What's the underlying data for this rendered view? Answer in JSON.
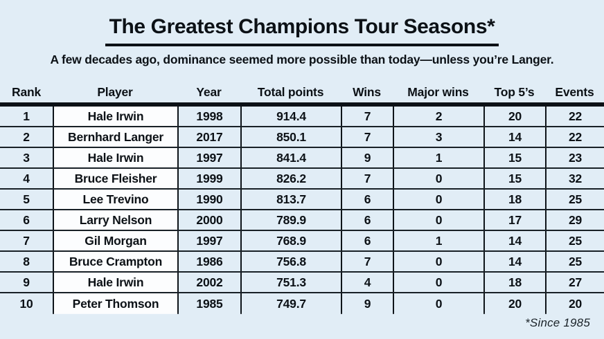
{
  "header": {
    "title": "The Greatest Champions Tour Seasons*",
    "subtitle": "A few decades ago, dominance seemed more possible than today—unless you’re Langer."
  },
  "footnote": "*Since 1985",
  "colors": {
    "background": "#e1edf6",
    "player_cell": "#fcfdfe",
    "rule": "#0c1116",
    "text": "#0c1116"
  },
  "chart_data": {
    "type": "table",
    "title": "The Greatest Champions Tour Seasons*",
    "subtitle": "A few decades ago, dominance seemed more possible than today—unless you’re Langer.",
    "columns": [
      "Rank",
      "Player",
      "Year",
      "Total points",
      "Wins",
      "Major wins",
      "Top 5’s",
      "Events"
    ],
    "rows": [
      [
        1,
        "Hale Irwin",
        1998,
        914.4,
        7,
        2,
        20,
        22
      ],
      [
        2,
        "Bernhard Langer",
        2017,
        850.1,
        7,
        3,
        14,
        22
      ],
      [
        3,
        "Hale Irwin",
        1997,
        841.4,
        9,
        1,
        15,
        23
      ],
      [
        4,
        "Bruce Fleisher",
        1999,
        826.2,
        7,
        0,
        15,
        32
      ],
      [
        5,
        "Lee Trevino",
        1990,
        813.7,
        6,
        0,
        18,
        25
      ],
      [
        6,
        "Larry Nelson",
        2000,
        789.9,
        6,
        0,
        17,
        29
      ],
      [
        7,
        "Gil Morgan",
        1997,
        768.9,
        6,
        1,
        14,
        25
      ],
      [
        8,
        "Bruce Crampton",
        1986,
        756.8,
        7,
        0,
        14,
        25
      ],
      [
        9,
        "Hale Irwin",
        2002,
        751.3,
        4,
        0,
        18,
        27
      ],
      [
        10,
        "Peter Thomson",
        1985,
        749.7,
        9,
        0,
        20,
        20
      ]
    ],
    "footnote": "*Since 1985",
    "layout": {
      "column_alignment": "center",
      "highlighted_column": "Player",
      "grid": "horizontal and vertical rules in body only"
    }
  }
}
